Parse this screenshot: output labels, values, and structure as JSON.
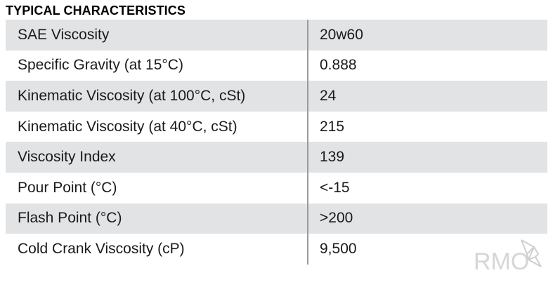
{
  "heading": "TYPICAL CHARACTERISTICS",
  "rows": [
    {
      "label": "SAE Viscosity",
      "value": "20w60"
    },
    {
      "label": "Specific Gravity (at 15°C)",
      "value": "0.888"
    },
    {
      "label": "Kinematic Viscosity (at 100°C, cSt)",
      "value": "24"
    },
    {
      "label": "Kinematic Viscosity (at 40°C, cSt)",
      "value": "215"
    },
    {
      "label": "Viscosity Index",
      "value": "139"
    },
    {
      "label": "Pour Point (°C)",
      "value": "<-15"
    },
    {
      "label": "Flash Point (°C)",
      "value": ">200"
    },
    {
      "label": "Cold Crank Viscosity (cP)",
      "value": "9,500"
    }
  ],
  "watermark": {
    "text": "RMO"
  },
  "colors": {
    "shaded_row": "#e2e3e4",
    "divider": "#9a9a9a",
    "watermark": "#d6d6d6"
  }
}
